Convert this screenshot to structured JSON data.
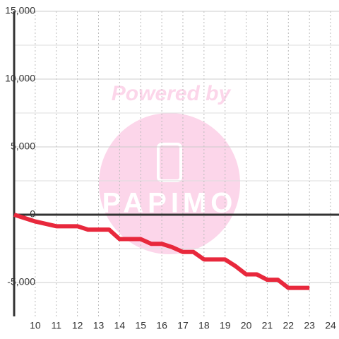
{
  "chart_data": {
    "type": "line",
    "watermark": {
      "title": "Powered by",
      "brand": "PAPIMO"
    },
    "x": [
      9,
      10,
      11,
      12,
      12.5,
      13.5,
      14,
      15,
      15.5,
      16,
      16.5,
      17,
      17.5,
      18,
      19,
      19.5,
      20,
      20.5,
      21,
      21.5,
      22,
      23
    ],
    "series": [
      {
        "color": "#e8283c",
        "values": [
          0,
          -500,
          -850,
          -850,
          -1100,
          -1100,
          -1800,
          -1800,
          -2150,
          -2150,
          -2400,
          -2750,
          -2750,
          -3300,
          -3300,
          -3800,
          -4400,
          -4400,
          -4800,
          -4800,
          -5400,
          -5400
        ]
      }
    ],
    "xlim": [
      9,
      24.4
    ],
    "ylim": [
      -7500,
      15000
    ],
    "xticks": [
      10,
      11,
      12,
      13,
      14,
      15,
      16,
      17,
      18,
      19,
      20,
      21,
      22,
      23,
      24
    ],
    "yticks": [
      {
        "value": -5000,
        "label": "-5,000"
      },
      0,
      {
        "value": 5000,
        "label": "5,000"
      },
      {
        "value": 10000,
        "label": "10,000"
      },
      {
        "value": 15000,
        "label": "15,000"
      }
    ],
    "yminor": [
      -2500,
      2500,
      7500,
      12500
    ],
    "grid": true
  }
}
